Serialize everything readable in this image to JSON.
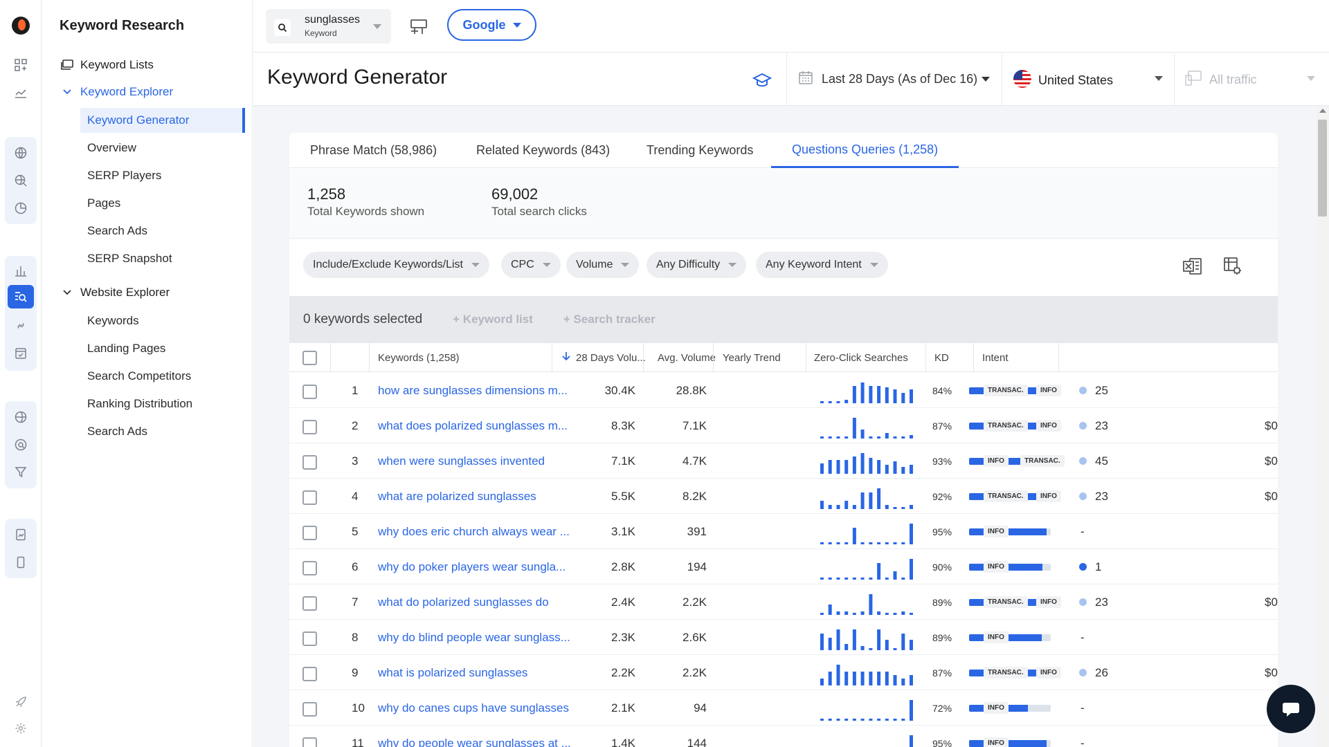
{
  "nav": {
    "section_title": "Keyword Research",
    "keyword_lists": "Keyword Lists",
    "keyword_explorer": "Keyword Explorer",
    "keyword_explorer_items": [
      "Keyword Generator",
      "Overview",
      "SERP Players",
      "Pages",
      "Search Ads",
      "SERP Snapshot"
    ],
    "website_explorer": "Website Explorer",
    "website_explorer_items": [
      "Keywords",
      "Landing Pages",
      "Search Competitors",
      "Ranking Distribution",
      "Search Ads"
    ]
  },
  "header": {
    "keyword_value": "sunglasses",
    "keyword_type": "Keyword",
    "engine": "Google"
  },
  "subheader": {
    "title": "Keyword Generator",
    "date_range": "Last 28 Days (As of Dec 16)",
    "country": "United States",
    "traffic": "All traffic"
  },
  "tabs": [
    "Phrase Match (58,986)",
    "Related Keywords (843)",
    "Trending Keywords",
    "Questions Queries (1,258)"
  ],
  "stats": {
    "total_keywords_value": "1,258",
    "total_keywords_label": "Total Keywords shown",
    "total_clicks_value": "69,002",
    "total_clicks_label": "Total search clicks"
  },
  "filters": [
    "Include/Exclude Keywords/List",
    "CPC",
    "Volume",
    "Any Difficulty",
    "Any Keyword Intent"
  ],
  "selection": {
    "count_text": "0 keywords selected",
    "keyword_list_action": "+  Keyword list",
    "search_tracker_action": "+  Search tracker"
  },
  "table": {
    "headers": {
      "keywords": "Keywords (1,258)",
      "volume_28": "28 Days Volu...",
      "avg_volume": "Avg. Volume",
      "yearly_trend": "Yearly Trend",
      "zero_click": "Zero-Click Searches",
      "kd": "KD",
      "intent": "Intent"
    },
    "rows": [
      {
        "num": "1",
        "keyword": "how are sunglasses dimensions m...",
        "vol28": "30.4K",
        "avg": "28.8K",
        "trend": [
          1,
          1,
          1,
          2,
          10,
          12,
          10,
          10,
          9,
          8,
          6,
          8
        ],
        "zc_text": "84%",
        "zc": 84,
        "kd": "25",
        "kd_level": "low",
        "intent": [
          "TRANSAC.",
          "INFO"
        ],
        "cpc": ""
      },
      {
        "num": "2",
        "keyword": "what does polarized sunglasses m...",
        "vol28": "8.3K",
        "avg": "7.1K",
        "trend": [
          1,
          1,
          1,
          1,
          12,
          5,
          1,
          1,
          3,
          1,
          1,
          2
        ],
        "zc_text": "87%",
        "zc": 87,
        "kd": "23",
        "kd_level": "low",
        "intent": [
          "TRANSAC.",
          "INFO"
        ],
        "cpc": "$0"
      },
      {
        "num": "3",
        "keyword": "when were sunglasses invented",
        "vol28": "7.1K",
        "avg": "4.7K",
        "trend": [
          6,
          8,
          8,
          8,
          10,
          12,
          9,
          8,
          5,
          7,
          4,
          5
        ],
        "zc_text": "93%",
        "zc": 93,
        "kd": "45",
        "kd_level": "low",
        "intent": [
          "INFO",
          "TRANSAC."
        ],
        "cpc": "$0"
      },
      {
        "num": "4",
        "keyword": "what are polarized sunglasses",
        "vol28": "5.5K",
        "avg": "8.2K",
        "trend": [
          4,
          2,
          2,
          4,
          2,
          8,
          8,
          10,
          2,
          1,
          1,
          2
        ],
        "zc_text": "92%",
        "zc": 92,
        "kd": "23",
        "kd_level": "low",
        "intent": [
          "TRANSAC.",
          "INFO"
        ],
        "cpc": "$0"
      },
      {
        "num": "5",
        "keyword": "why does eric church always wear ...",
        "vol28": "3.1K",
        "avg": "391",
        "trend": [
          1,
          1,
          1,
          1,
          8,
          1,
          1,
          1,
          1,
          1,
          1,
          10
        ],
        "zc_text": "95%",
        "zc": 95,
        "kd": "-",
        "kd_level": "none",
        "intent": [
          "INFO"
        ],
        "cpc": ""
      },
      {
        "num": "6",
        "keyword": "why do poker players wear sungla...",
        "vol28": "2.8K",
        "avg": "194",
        "trend": [
          1,
          1,
          1,
          1,
          1,
          1,
          1,
          8,
          1,
          4,
          1,
          10
        ],
        "zc_text": "90%",
        "zc": 90,
        "kd": "1",
        "kd_level": "high",
        "intent": [
          "INFO"
        ],
        "cpc": ""
      },
      {
        "num": "7",
        "keyword": "what do polarized sunglasses do",
        "vol28": "2.4K",
        "avg": "2.2K",
        "trend": [
          1,
          6,
          2,
          2,
          1,
          2,
          12,
          2,
          1,
          1,
          2,
          1
        ],
        "zc_text": "89%",
        "zc": 89,
        "kd": "23",
        "kd_level": "low",
        "intent": [
          "TRANSAC.",
          "INFO"
        ],
        "cpc": "$0"
      },
      {
        "num": "8",
        "keyword": "why do blind people wear sunglass...",
        "vol28": "2.3K",
        "avg": "2.6K",
        "trend": [
          8,
          6,
          10,
          3,
          10,
          2,
          1,
          10,
          5,
          1,
          8,
          5
        ],
        "zc_text": "89%",
        "zc": 89,
        "kd": "-",
        "kd_level": "none",
        "intent": [
          "INFO"
        ],
        "cpc": ""
      },
      {
        "num": "9",
        "keyword": "what is polarized sunglasses",
        "vol28": "2.2K",
        "avg": "2.2K",
        "trend": [
          4,
          8,
          12,
          8,
          8,
          8,
          8,
          8,
          8,
          6,
          4,
          6
        ],
        "zc_text": "87%",
        "zc": 87,
        "kd": "26",
        "kd_level": "low",
        "intent": [
          "TRANSAC.",
          "INFO"
        ],
        "cpc": "$0"
      },
      {
        "num": "10",
        "keyword": "why do canes cups have sunglasses",
        "vol28": "2.1K",
        "avg": "94",
        "trend": [
          1,
          1,
          1,
          1,
          1,
          1,
          1,
          1,
          1,
          1,
          1,
          10
        ],
        "zc_text": "72%",
        "zc": 72,
        "kd": "-",
        "kd_level": "none",
        "intent": [
          "INFO"
        ],
        "cpc": ""
      },
      {
        "num": "11",
        "keyword": "why do people wear sunglasses at ...",
        "vol28": "1.4K",
        "avg": "144",
        "trend": [
          1,
          1,
          1,
          1,
          1,
          1,
          1,
          1,
          1,
          1,
          1,
          10
        ],
        "zc_text": "95%",
        "zc": 95,
        "kd": "-",
        "kd_level": "none",
        "intent": [
          "INFO"
        ],
        "cpc": ""
      }
    ]
  },
  "colors": {
    "accent": "#2a66e4",
    "kd_low": "#a8c3f0",
    "kd_high": "#2a66e4"
  }
}
